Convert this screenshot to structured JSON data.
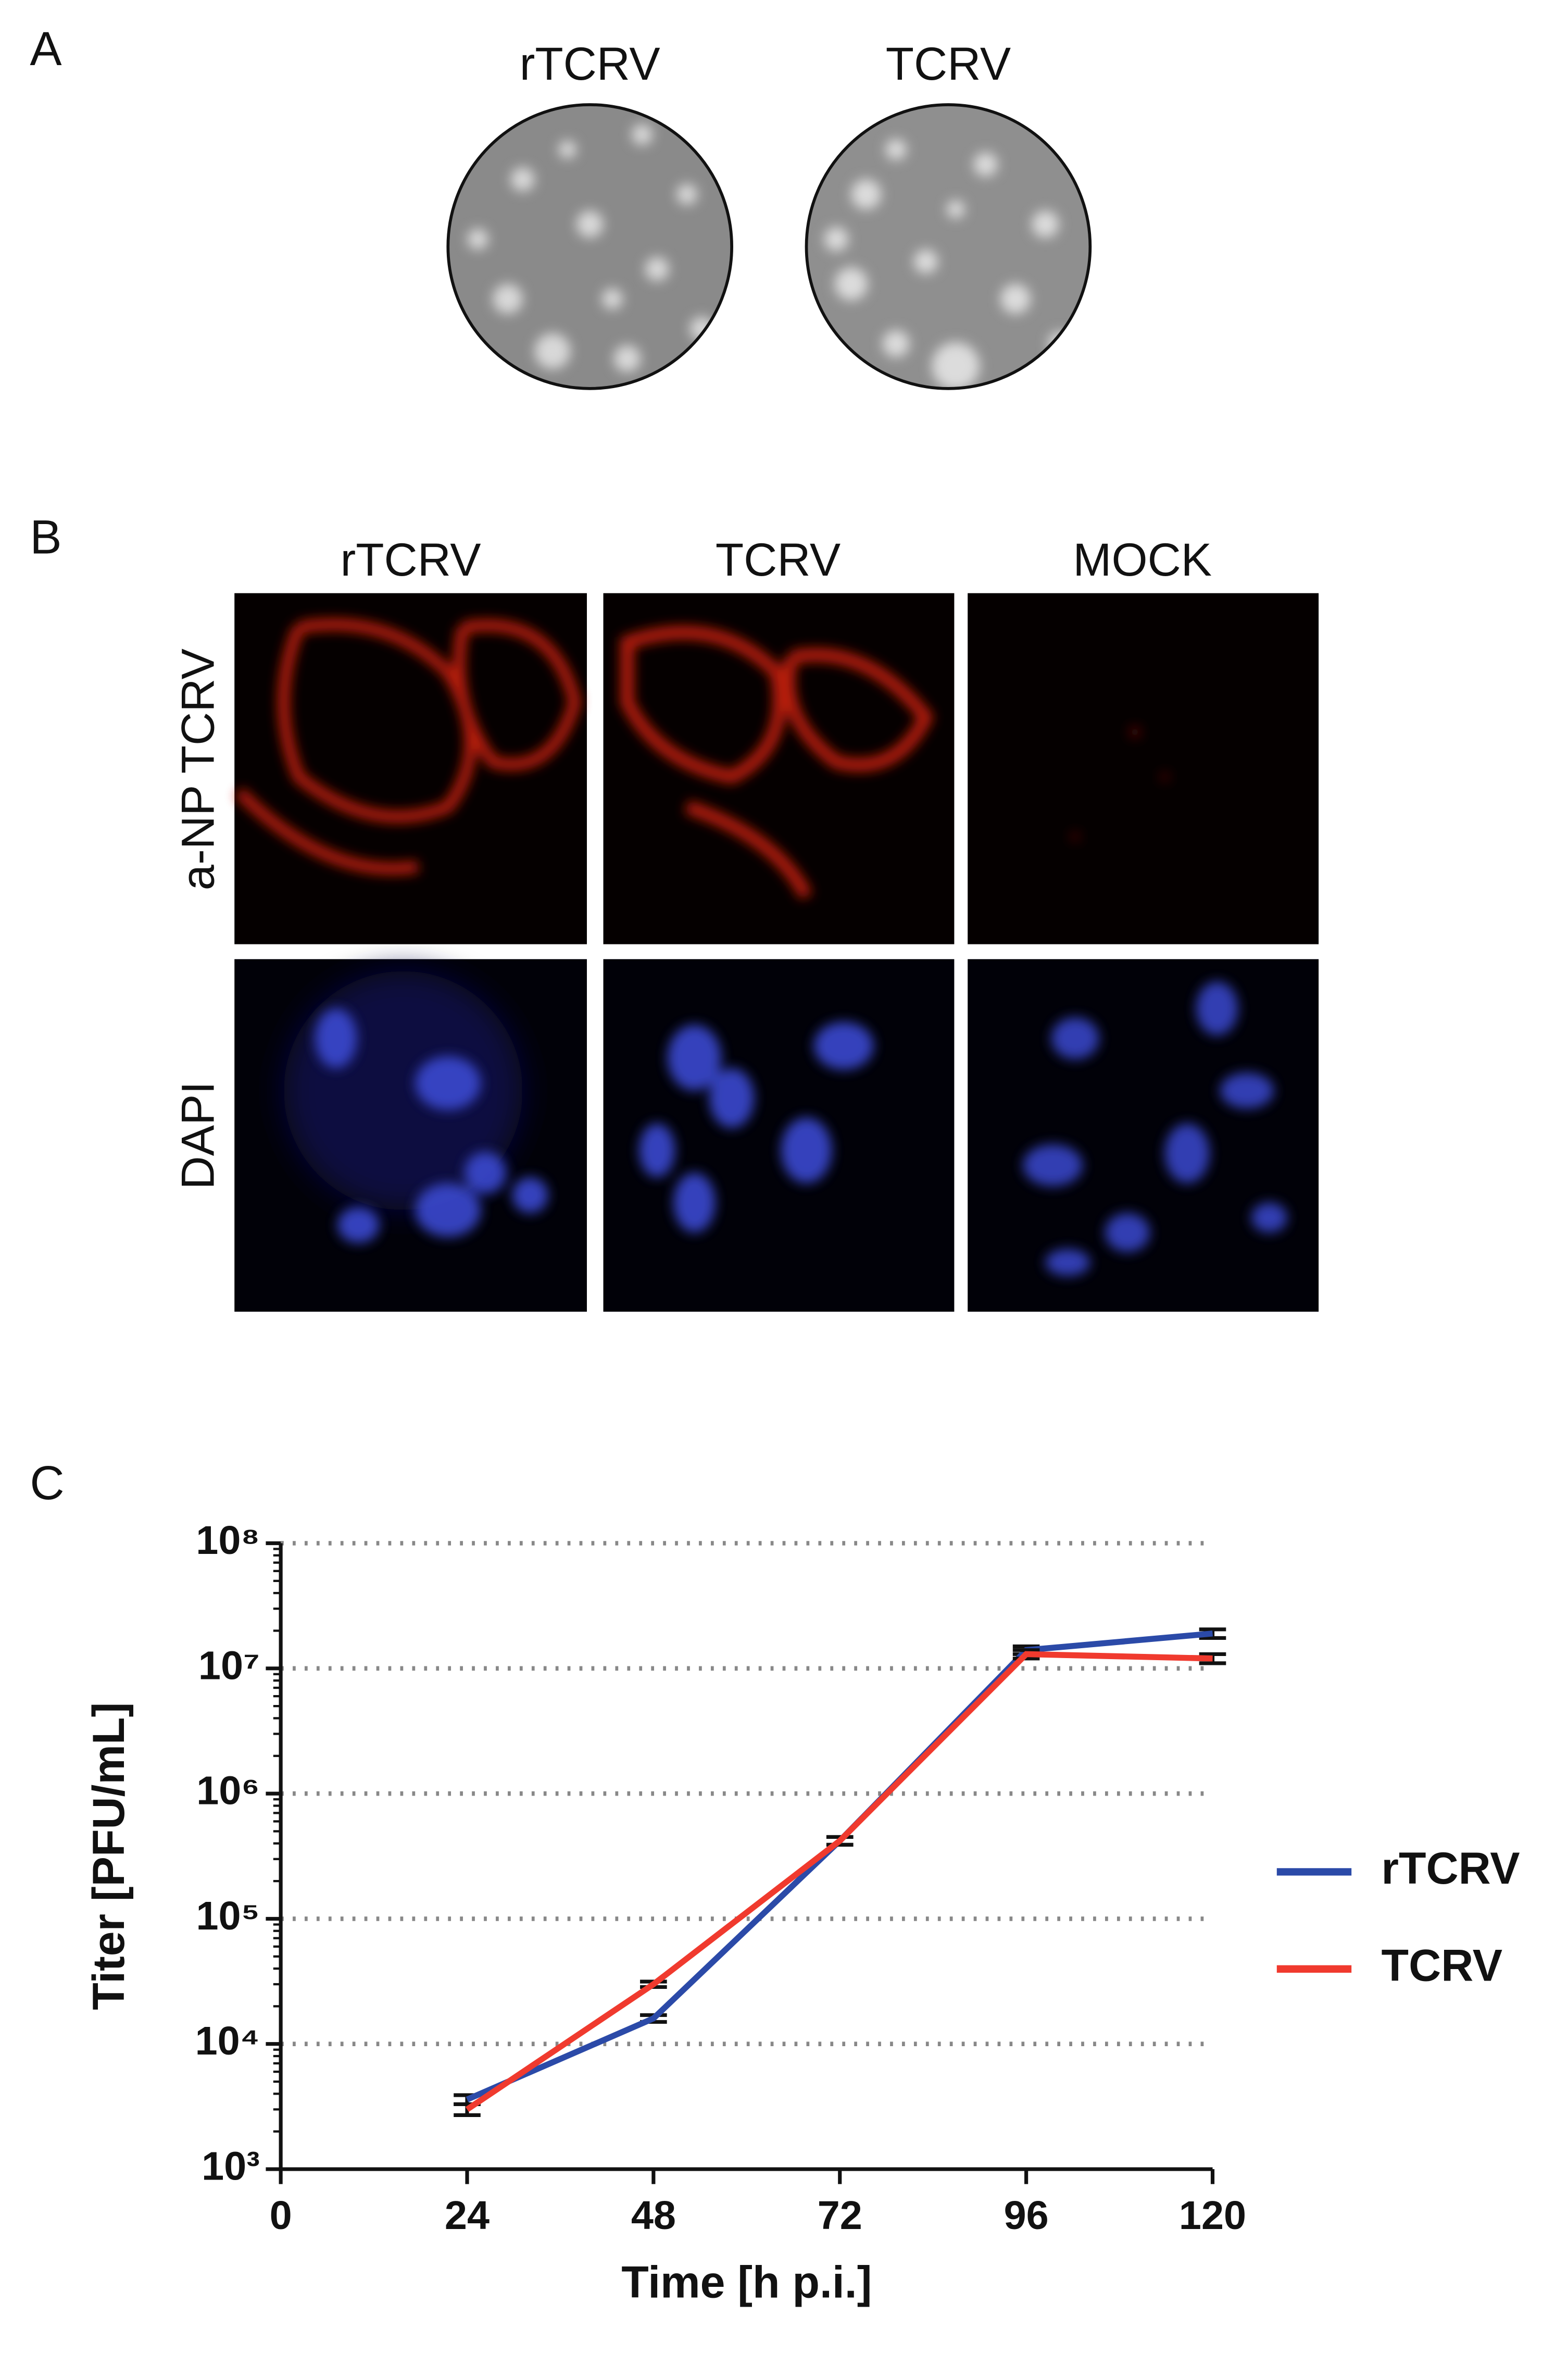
{
  "panel_a": {
    "label": "A",
    "plates": [
      {
        "label": "rTCRV"
      },
      {
        "label": "TCRV"
      }
    ]
  },
  "panel_b": {
    "label": "B",
    "columns": [
      "rTCRV",
      "TCRV",
      "MOCK"
    ],
    "rows": [
      "a-NP TCRV",
      "DAPI"
    ]
  },
  "chart_data": {
    "type": "line",
    "panel_label": "C",
    "xlabel": "Time [h p.i.]",
    "ylabel": "Titer [PFU/mL]",
    "x": [
      24,
      48,
      72,
      96,
      120
    ],
    "xlim": [
      0,
      120
    ],
    "xticks": [
      0,
      24,
      48,
      72,
      96,
      120
    ],
    "ylim": [
      1000,
      100000000
    ],
    "log_scale_y": true,
    "yticks": [
      {
        "value": 1000,
        "label": "10³"
      },
      {
        "value": 10000,
        "label": "10⁴"
      },
      {
        "value": 100000,
        "label": "10⁵"
      },
      {
        "value": 1000000,
        "label": "10⁶"
      },
      {
        "value": 10000000,
        "label": "10⁷"
      },
      {
        "value": 100000000,
        "label": "10⁸"
      }
    ],
    "grid": true,
    "legend_position": "right",
    "series": [
      {
        "name": "rTCRV",
        "color": "#2b4aa8",
        "values": [
          3600,
          16000,
          420000,
          14000000,
          19000000
        ],
        "errors": [
          300,
          1000,
          30000,
          1000000,
          1500000
        ]
      },
      {
        "name": "TCRV",
        "color": "#f03a2e",
        "values": [
          3000,
          30000,
          420000,
          13000000,
          12000000
        ],
        "errors": [
          300,
          1500,
          30000,
          1000000,
          1000000
        ]
      }
    ]
  }
}
